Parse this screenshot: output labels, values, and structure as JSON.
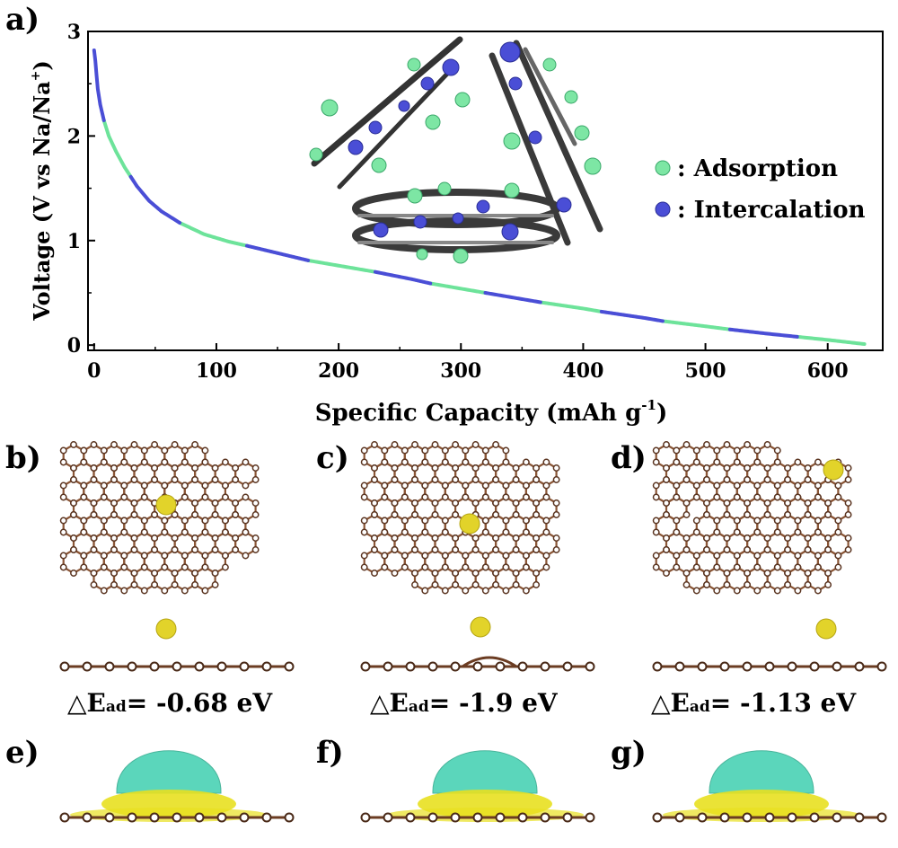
{
  "panels": {
    "a": "a)",
    "b": "b)",
    "c": "c)",
    "d": "d)",
    "e": "e)",
    "f": "f)",
    "g": "g)"
  },
  "chart_data": {
    "type": "line",
    "title": "",
    "xlabel": "Specific Capacity (mAh g",
    "xlabel_sup": "-1",
    "xlabel_end": ")",
    "ylabel": "Voltage (V vs Na/Na",
    "ylabel_sup": "+",
    "ylabel_end": ")",
    "xlim": [
      -5,
      645
    ],
    "ylim": [
      -0.05,
      3.0
    ],
    "xticks": [
      "0",
      "100",
      "200",
      "300",
      "400",
      "500",
      "600"
    ],
    "yticks": [
      "0",
      "1",
      "2",
      "3"
    ],
    "grid": false,
    "legend_position": "right",
    "series": [
      {
        "name": "Adsorption",
        "color": "#6de39a",
        "segments": [
          [
            8,
            30
          ],
          [
            70,
            125
          ],
          [
            175,
            230
          ],
          [
            275,
            320
          ],
          [
            365,
            415
          ],
          [
            465,
            520
          ],
          [
            575,
            630
          ]
        ]
      },
      {
        "name": "Intercalation",
        "color": "#4a4ed6",
        "segments": [
          [
            0,
            8
          ],
          [
            30,
            70
          ],
          [
            125,
            175
          ],
          [
            230,
            275
          ],
          [
            320,
            365
          ],
          [
            415,
            465
          ],
          [
            520,
            575
          ]
        ]
      }
    ],
    "curve": [
      [
        0,
        2.82
      ],
      [
        1,
        2.72
      ],
      [
        2,
        2.58
      ],
      [
        3,
        2.45
      ],
      [
        5,
        2.3
      ],
      [
        8,
        2.15
      ],
      [
        12,
        2.0
      ],
      [
        18,
        1.85
      ],
      [
        25,
        1.7
      ],
      [
        35,
        1.52
      ],
      [
        45,
        1.38
      ],
      [
        55,
        1.28
      ],
      [
        70,
        1.17
      ],
      [
        90,
        1.06
      ],
      [
        110,
        0.99
      ],
      [
        125,
        0.95
      ],
      [
        150,
        0.88
      ],
      [
        175,
        0.81
      ],
      [
        200,
        0.76
      ],
      [
        230,
        0.7
      ],
      [
        260,
        0.63
      ],
      [
        275,
        0.59
      ],
      [
        300,
        0.54
      ],
      [
        320,
        0.5
      ],
      [
        350,
        0.44
      ],
      [
        365,
        0.41
      ],
      [
        400,
        0.35
      ],
      [
        415,
        0.32
      ],
      [
        450,
        0.26
      ],
      [
        465,
        0.23
      ],
      [
        500,
        0.18
      ],
      [
        520,
        0.15
      ],
      [
        550,
        0.11
      ],
      [
        575,
        0.08
      ],
      [
        600,
        0.05
      ],
      [
        630,
        0.01
      ]
    ]
  },
  "energies": {
    "b": {
      "prefix": "△E",
      "sub": "ad",
      "value": "= -0.68 eV"
    },
    "c": {
      "prefix": "△E",
      "sub": "ad",
      "value": "= -1.9 eV"
    },
    "d": {
      "prefix": "△E",
      "sub": "ad",
      "value": "= -1.13 eV"
    }
  },
  "colors": {
    "carbon_dark": "#3a3a3a",
    "carbon_brown": "#8a5535",
    "sodium_yellow": "#e2d32a",
    "charge_cyan": "#3fd0b0",
    "charge_yellow": "#e8e020"
  }
}
